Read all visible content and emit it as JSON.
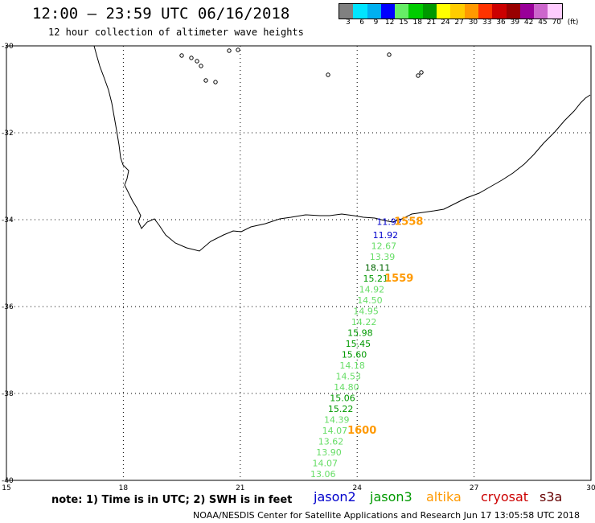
{
  "header": {
    "title": "12:00 – 23:59 UTC 06/16/2018",
    "subtitle": "12 hour collection of altimeter wave heights"
  },
  "color_scale": {
    "swatches": [
      "#808080",
      "#00e5ff",
      "#00b0f0",
      "#0000ff",
      "#66ee66",
      "#00cc00",
      "#009900",
      "#ffff00",
      "#ffcc00",
      "#ff9900",
      "#ff3300",
      "#cc0000",
      "#990000",
      "#990099",
      "#cc66cc",
      "#ffccff"
    ],
    "labels": [
      "3",
      "6",
      "9",
      "12",
      "15",
      "18",
      "21",
      "24",
      "27",
      "30",
      "33",
      "36",
      "39",
      "42",
      "45",
      "70"
    ],
    "unit": "(ft)"
  },
  "axes": {
    "lat_ticks": [
      "-30",
      "-32",
      "-34",
      "-36",
      "-38",
      "-40"
    ],
    "lon_ticks": [
      "15",
      "18",
      "21",
      "24",
      "27",
      "30"
    ]
  },
  "track_labels": [
    {
      "text": "11.92",
      "lon": 24.5,
      "lat": -34.05,
      "color": "#0000cc"
    },
    {
      "text": "11.92",
      "lon": 24.4,
      "lat": -34.35,
      "color": "#0000cc"
    },
    {
      "text": "12.67",
      "lon": 24.36,
      "lat": -34.6,
      "color": "#66dd66"
    },
    {
      "text": "13.39",
      "lon": 24.32,
      "lat": -34.85,
      "color": "#66dd66"
    },
    {
      "text": "18.11",
      "lon": 24.2,
      "lat": -35.1,
      "color": "#006600"
    },
    {
      "text": "15.21",
      "lon": 24.15,
      "lat": -35.35,
      "color": "#009900"
    },
    {
      "text": "14.92",
      "lon": 24.05,
      "lat": -35.6,
      "color": "#66dd66"
    },
    {
      "text": "14.50",
      "lon": 24.0,
      "lat": -35.85,
      "color": "#66dd66"
    },
    {
      "text": "14.95",
      "lon": 23.9,
      "lat": -36.1,
      "color": "#66dd66"
    },
    {
      "text": "14.22",
      "lon": 23.85,
      "lat": -36.35,
      "color": "#66dd66"
    },
    {
      "text": "15.98",
      "lon": 23.75,
      "lat": -36.6,
      "color": "#009900"
    },
    {
      "text": "15.45",
      "lon": 23.7,
      "lat": -36.85,
      "color": "#009900"
    },
    {
      "text": "15.60",
      "lon": 23.6,
      "lat": -37.1,
      "color": "#009900"
    },
    {
      "text": "14.18",
      "lon": 23.55,
      "lat": -37.35,
      "color": "#66dd66"
    },
    {
      "text": "14.53",
      "lon": 23.45,
      "lat": -37.6,
      "color": "#66dd66"
    },
    {
      "text": "14.80",
      "lon": 23.4,
      "lat": -37.85,
      "color": "#66dd66"
    },
    {
      "text": "15.06",
      "lon": 23.3,
      "lat": -38.1,
      "color": "#009900"
    },
    {
      "text": "15.22",
      "lon": 23.25,
      "lat": -38.35,
      "color": "#009900"
    },
    {
      "text": "14.39",
      "lon": 23.15,
      "lat": -38.6,
      "color": "#66dd66"
    },
    {
      "text": "14.07",
      "lon": 23.1,
      "lat": -38.85,
      "color": "#66dd66"
    },
    {
      "text": "13.62",
      "lon": 23.0,
      "lat": -39.1,
      "color": "#66dd66"
    },
    {
      "text": "13.90",
      "lon": 22.95,
      "lat": -39.35,
      "color": "#66dd66"
    },
    {
      "text": "14.07",
      "lon": 22.85,
      "lat": -39.6,
      "color": "#66dd66"
    },
    {
      "text": "13.06",
      "lon": 22.8,
      "lat": -39.85,
      "color": "#66dd66"
    }
  ],
  "time_labels": [
    {
      "text": "1558",
      "lon": 24.95,
      "lat": -34.05,
      "color": "#ff9900"
    },
    {
      "text": "1559",
      "lon": 24.7,
      "lat": -35.35,
      "color": "#ff9900"
    },
    {
      "text": "1600",
      "lon": 23.75,
      "lat": -38.85,
      "color": "#ff9900"
    }
  ],
  "note": "note:  1) Time is in UTC;  2) SWH is in feet",
  "missions": [
    {
      "name": "jason2",
      "color": "#0000cc"
    },
    {
      "name": "jason3",
      "color": "#009900"
    },
    {
      "name": "altika",
      "color": "#ff9900"
    },
    {
      "name": "cryosat",
      "color": "#cc0000"
    },
    {
      "name": "s3a",
      "color": "#660000"
    }
  ],
  "footer": "NOAA/NESDIS Center for Satellite Applications and Research   Jun 17 13:05:58 UTC 2018"
}
